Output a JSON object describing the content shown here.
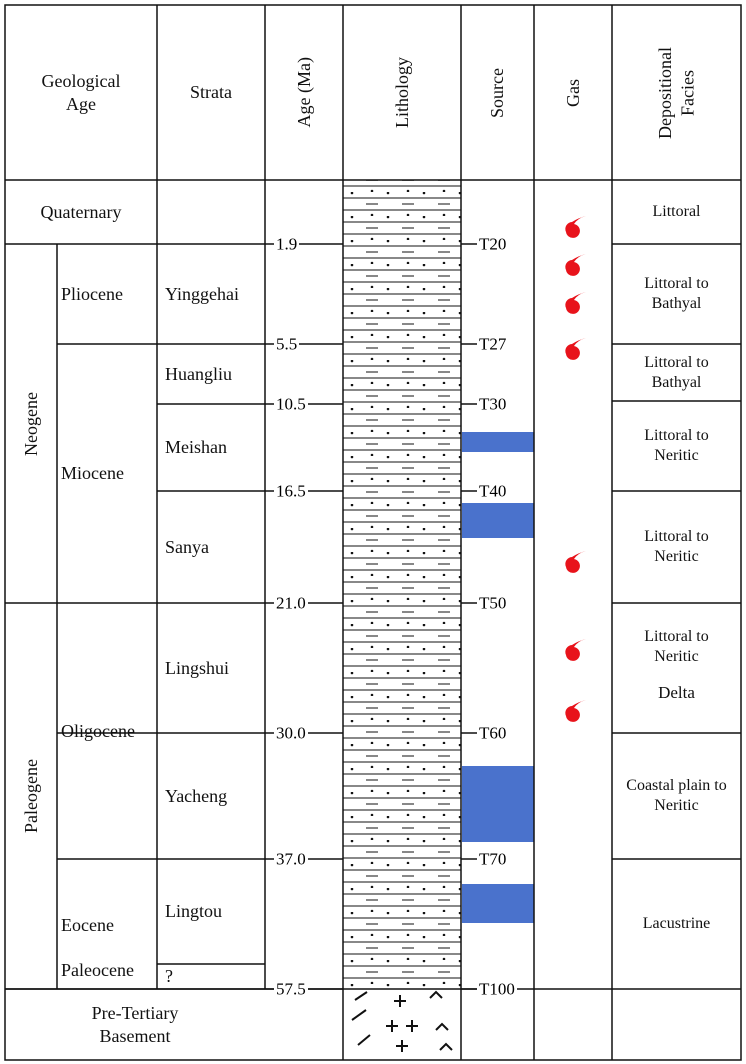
{
  "header": {
    "geological_age": "Geological Age",
    "strata": "Strata",
    "age": "Age (Ma)",
    "lithology": "Lithology",
    "source": "Source",
    "gas": "Gas",
    "facies": "Depositional Facies"
  },
  "quaternary": "Quaternary",
  "eras": [
    "Neogene",
    "Paleogene"
  ],
  "epochs": [
    "Pliocene",
    "Miocene",
    "Oligocene",
    "Eocene",
    "Paleocene"
  ],
  "strata": [
    "Yinggehai",
    "Huangliu",
    "Meishan",
    "Sanya",
    "Lingshui",
    "Yacheng",
    "Lingtou",
    "?"
  ],
  "boundaries": [
    {
      "age": "1.9",
      "horizon": "T20"
    },
    {
      "age": "5.5",
      "horizon": "T27"
    },
    {
      "age": "10.5",
      "horizon": "T30"
    },
    {
      "age": "16.5",
      "horizon": "T40"
    },
    {
      "age": "21.0",
      "horizon": "T50"
    },
    {
      "age": "30.0",
      "horizon": "T60"
    },
    {
      "age": "37.0",
      "horizon": "T70"
    },
    {
      "age": "57.5",
      "horizon": "T100"
    }
  ],
  "facies": [
    "Littoral",
    "Littoral to Bathyal",
    "Littoral to Bathyal",
    "Littoral to Neritic",
    "Littoral to Neritic",
    "Littoral to Neritic",
    "Coastal plain to Neritic",
    "Lacustrine"
  ],
  "facies_note": "Delta",
  "basement": "Pre-Tertiary Basement"
}
